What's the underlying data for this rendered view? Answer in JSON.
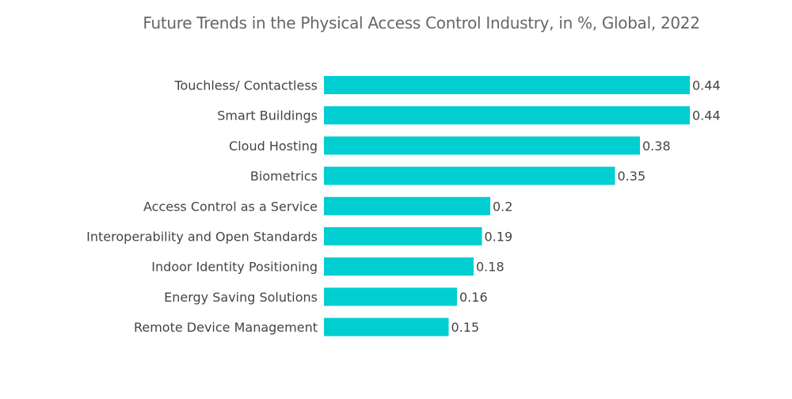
{
  "chart_data": {
    "type": "bar",
    "orientation": "horizontal",
    "title": "Future Trends in the Physical Access Control Industry, in %, Global, 2022",
    "xlabel": "",
    "ylabel": "",
    "categories": [
      "Touchless/ Contactless",
      "Smart Buildings",
      "Cloud Hosting",
      "Biometrics",
      "Access Control as a Service",
      "Interoperability and Open Standards",
      "Indoor Identity Positioning",
      "Energy Saving Solutions",
      "Remote Device Management"
    ],
    "values": [
      0.44,
      0.44,
      0.38,
      0.35,
      0.2,
      0.19,
      0.18,
      0.16,
      0.15
    ],
    "data_labels": [
      "0.44",
      "0.44",
      "0.38",
      "0.35",
      "0.2",
      "0.19",
      "0.18",
      "0.16",
      "0.15"
    ],
    "xlim": [
      0,
      0.44
    ],
    "grid": false,
    "legend": "none",
    "bar_color": "#00CED1"
  }
}
